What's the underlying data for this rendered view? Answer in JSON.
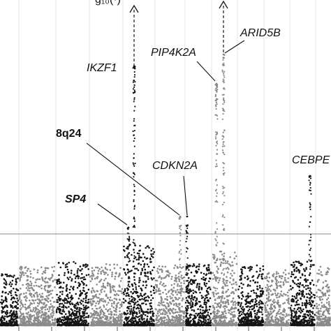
{
  "chart_data": {
    "type": "scatter",
    "title": "",
    "xlabel": "",
    "ylabel": "",
    "y_label_fragment": "g₁₀(·)",
    "significance_line": "genome-wide threshold",
    "colors": {
      "odd_chromosome": "#141414",
      "even_chromosome": "#8a8a8a",
      "threshold": "#888888",
      "grid": "#e4e4e4"
    },
    "annotations": [
      {
        "label": "IKZF1",
        "style": "italic"
      },
      {
        "label": "PIP4K2A",
        "style": "italic"
      },
      {
        "label": "ARID5B",
        "style": "italic"
      },
      {
        "label": "8q24",
        "style": "bold"
      },
      {
        "label": "CDKN2A",
        "style": "italic"
      },
      {
        "label": "CEBPE",
        "style": "italic"
      },
      {
        "label": "SP4",
        "style": "bold-italic"
      }
    ],
    "series": [
      {
        "name": "",
        "color_key": "even_chromosome",
        "values": []
      },
      {
        "name": "",
        "color_key": "odd_chromosome",
        "values": []
      }
    ]
  }
}
